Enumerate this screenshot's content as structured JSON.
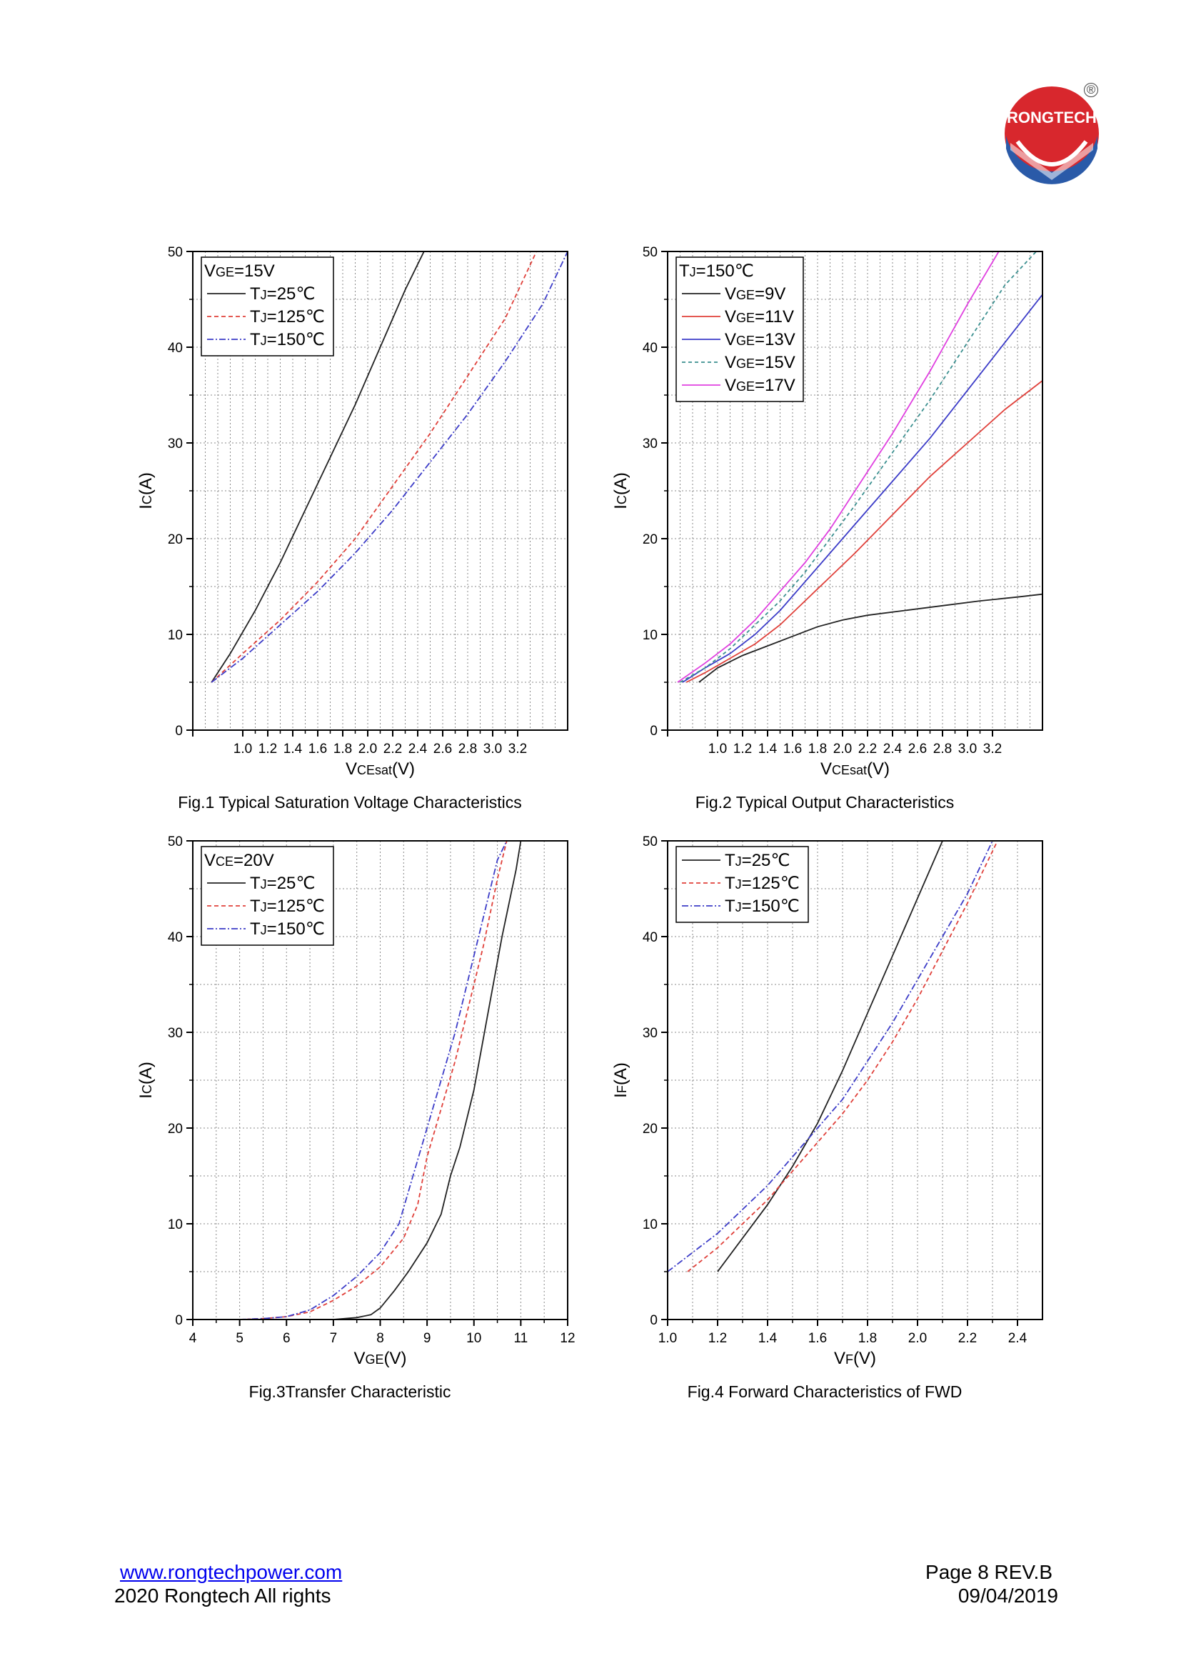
{
  "logo": {
    "text": "RONGTECH",
    "mark": "®"
  },
  "footer": {
    "website": "www.rongtechpower.com",
    "copyright": "2020 Rongtech All rights",
    "page": "Page 8  REV.B",
    "date": "09/04/2019"
  },
  "colors": {
    "black": "#222222",
    "red": "#e0403a",
    "blue": "#3c3cc8",
    "teal": "#3a8f8f",
    "magenta": "#e040e0"
  },
  "chart_data": [
    {
      "id": "fig1",
      "type": "line",
      "caption": "Fig.1 Typical Saturation Voltage Characteristics",
      "xlabel": "VCEsat(V)",
      "ylabel": "IC(A)",
      "xlim": [
        0.6,
        3.6
      ],
      "ylim": [
        0,
        50
      ],
      "xticks": [
        "1.0",
        "1.2",
        "1.4",
        "1.6",
        "1.8",
        "2.0",
        "2.2",
        "2.4",
        "2.6",
        "2.8",
        "3.0",
        "3.2"
      ],
      "xtick_values": [
        1.0,
        1.2,
        1.4,
        1.6,
        1.8,
        2.0,
        2.2,
        2.4,
        2.6,
        2.8,
        3.0,
        3.2
      ],
      "yticks": [
        "0",
        "10",
        "20",
        "30",
        "40",
        "50"
      ],
      "ytick_values": [
        0,
        10,
        20,
        30,
        40,
        50
      ],
      "legend_title": "VGE=15V",
      "legend_position": "top-left",
      "series": [
        {
          "name": "TJ=25℃",
          "color": "#222222",
          "dash": "",
          "x": [
            0.75,
            0.9,
            1.1,
            1.3,
            1.5,
            1.7,
            1.9,
            2.1,
            2.3,
            2.45
          ],
          "y": [
            5,
            8,
            12.5,
            17.5,
            23,
            28.5,
            34,
            40,
            46,
            50
          ]
        },
        {
          "name": "TJ=125℃",
          "color": "#e0403a",
          "dash": "6,4",
          "x": [
            0.75,
            1.0,
            1.3,
            1.6,
            1.9,
            2.2,
            2.5,
            2.8,
            3.1,
            3.35
          ],
          "y": [
            5,
            8,
            11.5,
            15.5,
            20,
            25.5,
            31,
            37,
            43,
            50
          ]
        },
        {
          "name": "TJ=150℃",
          "color": "#3c3cc8",
          "dash": "9,3,2,3",
          "x": [
            0.75,
            1.0,
            1.3,
            1.6,
            1.9,
            2.2,
            2.5,
            2.8,
            3.1,
            3.4,
            3.6
          ],
          "y": [
            5,
            7.5,
            11,
            14.5,
            18.5,
            23,
            28,
            33,
            38.5,
            44.5,
            50
          ]
        }
      ]
    },
    {
      "id": "fig2",
      "type": "line",
      "caption": "Fig.2 Typical Output Characteristics",
      "xlabel": "VCEsat(V)",
      "ylabel": "IC(A)",
      "xlim": [
        0.6,
        3.6
      ],
      "ylim": [
        0,
        50
      ],
      "xticks": [
        "1.0",
        "1.2",
        "1.4",
        "1.6",
        "1.8",
        "2.0",
        "2.2",
        "2.4",
        "2.6",
        "2.8",
        "3.0",
        "3.2"
      ],
      "xtick_values": [
        1.0,
        1.2,
        1.4,
        1.6,
        1.8,
        2.0,
        2.2,
        2.4,
        2.6,
        2.8,
        3.0,
        3.2
      ],
      "yticks": [
        "0",
        "10",
        "20",
        "30",
        "40",
        "50"
      ],
      "ytick_values": [
        0,
        10,
        20,
        30,
        40,
        50
      ],
      "legend_title": "TJ=150℃",
      "legend_position": "top-left",
      "series": [
        {
          "name": "VGE=9V",
          "color": "#222222",
          "dash": "",
          "x": [
            0.85,
            1.0,
            1.2,
            1.4,
            1.6,
            1.8,
            2.0,
            2.2,
            2.5,
            2.8,
            3.1,
            3.4,
            3.6
          ],
          "y": [
            5,
            6.5,
            7.8,
            8.8,
            9.8,
            10.8,
            11.5,
            12,
            12.5,
            13,
            13.5,
            13.9,
            14.2
          ]
        },
        {
          "name": "VGE=11V",
          "color": "#e0403a",
          "dash": "",
          "x": [
            0.75,
            0.9,
            1.1,
            1.3,
            1.5,
            1.7,
            1.9,
            2.1,
            2.4,
            2.7,
            3.0,
            3.3,
            3.6
          ],
          "y": [
            5,
            6,
            7.5,
            9,
            11,
            13.5,
            16,
            18.5,
            22.5,
            26.5,
            30,
            33.5,
            36.5
          ]
        },
        {
          "name": "VGE=13V",
          "color": "#3c3cc8",
          "dash": "",
          "x": [
            0.72,
            0.9,
            1.1,
            1.3,
            1.5,
            1.7,
            1.9,
            2.1,
            2.4,
            2.7,
            3.0,
            3.3,
            3.6
          ],
          "y": [
            5,
            6.5,
            8,
            10,
            12.5,
            15.5,
            18.5,
            21.5,
            26,
            30.5,
            35.5,
            40.5,
            45.5
          ]
        },
        {
          "name": "VGE=15V",
          "color": "#3a8f8f",
          "dash": "5,4",
          "x": [
            0.7,
            0.9,
            1.1,
            1.3,
            1.5,
            1.7,
            1.9,
            2.1,
            2.4,
            2.7,
            3.0,
            3.3,
            3.55
          ],
          "y": [
            5,
            6.5,
            8.5,
            11,
            13.5,
            16.5,
            20,
            23.5,
            29,
            34.5,
            40.5,
            46.5,
            50
          ]
        },
        {
          "name": "VGE=17V",
          "color": "#e040e0",
          "dash": "",
          "x": [
            0.68,
            0.9,
            1.1,
            1.3,
            1.5,
            1.7,
            1.9,
            2.1,
            2.4,
            2.7,
            3.0,
            3.25
          ],
          "y": [
            5,
            7,
            9,
            11.5,
            14.5,
            17.5,
            21,
            25,
            31,
            37.5,
            44.5,
            50
          ]
        }
      ]
    },
    {
      "id": "fig3",
      "type": "line",
      "caption": "Fig.3Transfer Characteristic",
      "xlabel": "VGE(V)",
      "ylabel": "IC(A)",
      "xlim": [
        4,
        12
      ],
      "ylim": [
        0,
        50
      ],
      "xticks": [
        "4",
        "5",
        "6",
        "7",
        "8",
        "9",
        "10",
        "11",
        "12"
      ],
      "xtick_values": [
        4,
        5,
        6,
        7,
        8,
        9,
        10,
        11,
        12
      ],
      "yticks": [
        "0",
        "10",
        "20",
        "30",
        "40",
        "50"
      ],
      "ytick_values": [
        0,
        10,
        20,
        30,
        40,
        50
      ],
      "legend_title": "VCE=20V",
      "legend_position": "top-left",
      "series": [
        {
          "name": "TJ=25℃",
          "color": "#222222",
          "dash": "",
          "x": [
            4.5,
            6,
            7,
            7.5,
            7.8,
            8.0,
            8.3,
            8.6,
            9.0,
            9.3,
            9.5,
            9.7,
            10.0,
            10.3,
            10.6,
            10.9,
            11.0
          ],
          "y": [
            0,
            0,
            0,
            0.2,
            0.5,
            1.2,
            3,
            5,
            8,
            11,
            15,
            18,
            24,
            32,
            40,
            47,
            50
          ]
        },
        {
          "name": "TJ=125℃",
          "color": "#e0403a",
          "dash": "6,4",
          "x": [
            5,
            5.5,
            6,
            6.5,
            7,
            7.5,
            8.0,
            8.5,
            8.8,
            9.0,
            9.3,
            9.6,
            9.9,
            10.2,
            10.5,
            10.7
          ],
          "y": [
            0,
            0.1,
            0.3,
            0.8,
            2,
            3.5,
            5.5,
            8.5,
            12,
            17,
            22,
            27,
            33,
            39,
            46,
            50
          ]
        },
        {
          "name": "TJ=150℃",
          "color": "#3c3cc8",
          "dash": "9,3,2,3",
          "x": [
            5,
            5.5,
            6,
            6.5,
            7,
            7.5,
            8.0,
            8.4,
            8.7,
            9.0,
            9.3,
            9.6,
            9.9,
            10.2,
            10.5,
            10.7
          ],
          "y": [
            0,
            0.1,
            0.3,
            1,
            2.5,
            4.5,
            7,
            10,
            15,
            20,
            25,
            30,
            36,
            42,
            48,
            50
          ]
        }
      ]
    },
    {
      "id": "fig4",
      "type": "line",
      "caption": "Fig.4 Forward Characteristics of FWD",
      "xlabel": "VF(V)",
      "ylabel": "IF(A)",
      "xlim": [
        1.0,
        2.5
      ],
      "ylim": [
        0,
        50
      ],
      "xticks": [
        "1.0",
        "1.2",
        "1.4",
        "1.6",
        "1.8",
        "2.0",
        "2.2",
        "2.4"
      ],
      "xtick_values": [
        1.0,
        1.2,
        1.4,
        1.6,
        1.8,
        2.0,
        2.2,
        2.4
      ],
      "yticks": [
        "0",
        "10",
        "20",
        "30",
        "40",
        "50"
      ],
      "ytick_values": [
        0,
        10,
        20,
        30,
        40,
        50
      ],
      "legend_title": "",
      "legend_position": "top-left",
      "series": [
        {
          "name": "TJ=25℃",
          "color": "#222222",
          "dash": "",
          "x": [
            1.2,
            1.3,
            1.4,
            1.5,
            1.6,
            1.7,
            1.8,
            1.9,
            2.0,
            2.1
          ],
          "y": [
            5,
            8.5,
            12,
            16,
            20.5,
            26,
            32,
            38,
            44,
            50
          ]
        },
        {
          "name": "TJ=125℃",
          "color": "#e0403a",
          "dash": "6,4",
          "x": [
            1.08,
            1.2,
            1.3,
            1.4,
            1.5,
            1.6,
            1.7,
            1.8,
            1.9,
            2.0,
            2.1,
            2.2,
            2.32
          ],
          "y": [
            5,
            7.5,
            10,
            12.5,
            15.5,
            18.5,
            21.5,
            25,
            29,
            33.5,
            38.5,
            43.5,
            50
          ]
        },
        {
          "name": "TJ=150℃",
          "color": "#3c3cc8",
          "dash": "9,3,2,3",
          "x": [
            1.0,
            1.1,
            1.2,
            1.3,
            1.4,
            1.5,
            1.6,
            1.7,
            1.8,
            1.9,
            2.0,
            2.1,
            2.2,
            2.3
          ],
          "y": [
            5,
            7,
            9,
            11.5,
            14,
            17,
            20,
            23,
            27,
            31,
            35.5,
            40,
            44.5,
            50
          ]
        }
      ]
    }
  ]
}
